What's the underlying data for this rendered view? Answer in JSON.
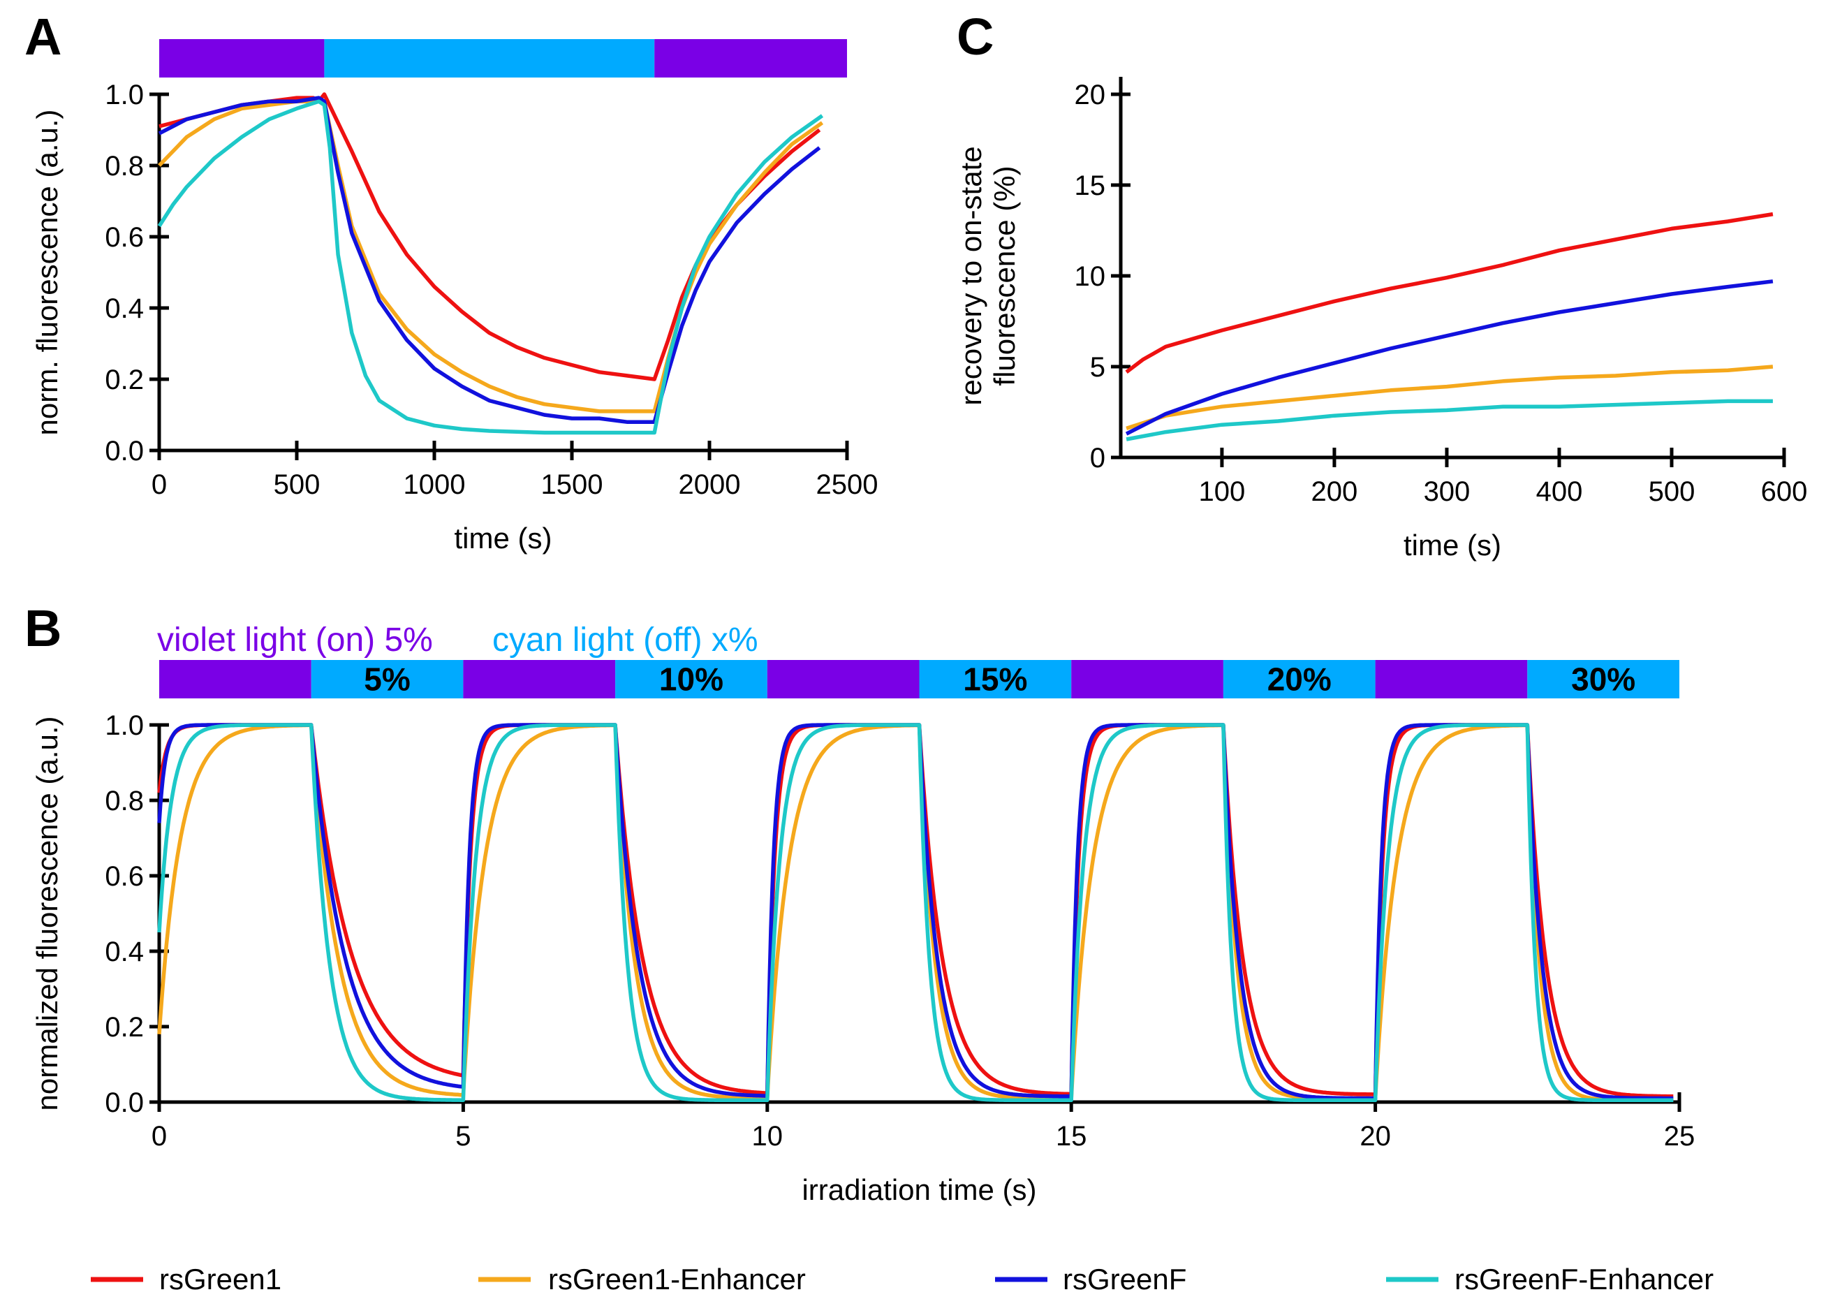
{
  "colors": {
    "rsGreen1": "#ee1111",
    "rsGreen1-Enhancer": "#f5a81c",
    "rsGreenF": "#1111dd",
    "rsGreenF-Enhancer": "#1ec8c8",
    "violet": "#7a00e6",
    "cyan": "#00aaff"
  },
  "legend": [
    {
      "name": "rsGreen1",
      "color": "#ee1111"
    },
    {
      "name": "rsGreen1-Enhancer",
      "color": "#f5a81c"
    },
    {
      "name": "rsGreenF",
      "color": "#1111dd"
    },
    {
      "name": "rsGreenF-Enhancer",
      "color": "#1ec8c8"
    }
  ],
  "panels": {
    "A": {
      "label": "A"
    },
    "B": {
      "label": "B",
      "header_violet": "violet light (on) 5%",
      "header_cyan": "cyan light (off) x%"
    },
    "C": {
      "label": "C"
    }
  },
  "chart_data": [
    {
      "id": "A",
      "type": "line",
      "xlabel": "time (s)",
      "ylabel": "norm. fluorescence (a.u.)",
      "xlim": [
        0,
        2500
      ],
      "ylim": [
        0,
        1.0
      ],
      "xticks": [
        0,
        500,
        1000,
        1500,
        2000,
        2500
      ],
      "yticks": [
        0.0,
        0.2,
        0.4,
        0.6,
        0.8,
        1.0
      ],
      "illumination": [
        {
          "start": 0,
          "end": 600,
          "light": "violet"
        },
        {
          "start": 600,
          "end": 1800,
          "light": "cyan"
        },
        {
          "start": 1800,
          "end": 2500,
          "light": "violet"
        }
      ],
      "series": [
        {
          "name": "rsGreen1",
          "points": [
            [
              0,
              0.91
            ],
            [
              100,
              0.93
            ],
            [
              200,
              0.95
            ],
            [
              300,
              0.97
            ],
            [
              400,
              0.98
            ],
            [
              500,
              0.99
            ],
            [
              560,
              0.99
            ],
            [
              580,
              0.98
            ],
            [
              600,
              1.0
            ],
            [
              700,
              0.84
            ],
            [
              800,
              0.67
            ],
            [
              900,
              0.55
            ],
            [
              1000,
              0.46
            ],
            [
              1100,
              0.39
            ],
            [
              1200,
              0.33
            ],
            [
              1300,
              0.29
            ],
            [
              1400,
              0.26
            ],
            [
              1500,
              0.24
            ],
            [
              1600,
              0.22
            ],
            [
              1700,
              0.21
            ],
            [
              1800,
              0.2
            ],
            [
              1850,
              0.31
            ],
            [
              1900,
              0.43
            ],
            [
              1950,
              0.52
            ],
            [
              2000,
              0.59
            ],
            [
              2100,
              0.69
            ],
            [
              2200,
              0.77
            ],
            [
              2300,
              0.84
            ],
            [
              2400,
              0.9
            ]
          ]
        },
        {
          "name": "rsGreen1-Enhancer",
          "points": [
            [
              0,
              0.8
            ],
            [
              100,
              0.88
            ],
            [
              200,
              0.93
            ],
            [
              300,
              0.96
            ],
            [
              400,
              0.97
            ],
            [
              500,
              0.98
            ],
            [
              600,
              0.98
            ],
            [
              650,
              0.8
            ],
            [
              700,
              0.63
            ],
            [
              800,
              0.44
            ],
            [
              900,
              0.34
            ],
            [
              1000,
              0.27
            ],
            [
              1100,
              0.22
            ],
            [
              1200,
              0.18
            ],
            [
              1300,
              0.15
            ],
            [
              1400,
              0.13
            ],
            [
              1500,
              0.12
            ],
            [
              1600,
              0.11
            ],
            [
              1700,
              0.11
            ],
            [
              1800,
              0.11
            ],
            [
              1850,
              0.26
            ],
            [
              1900,
              0.4
            ],
            [
              1950,
              0.5
            ],
            [
              2000,
              0.58
            ],
            [
              2100,
              0.69
            ],
            [
              2200,
              0.78
            ],
            [
              2300,
              0.86
            ],
            [
              2410,
              0.92
            ]
          ]
        },
        {
          "name": "rsGreenF",
          "points": [
            [
              0,
              0.89
            ],
            [
              100,
              0.93
            ],
            [
              200,
              0.95
            ],
            [
              300,
              0.97
            ],
            [
              400,
              0.98
            ],
            [
              500,
              0.98
            ],
            [
              580,
              0.99
            ],
            [
              600,
              0.98
            ],
            [
              650,
              0.78
            ],
            [
              700,
              0.61
            ],
            [
              800,
              0.42
            ],
            [
              900,
              0.31
            ],
            [
              1000,
              0.23
            ],
            [
              1100,
              0.18
            ],
            [
              1200,
              0.14
            ],
            [
              1300,
              0.12
            ],
            [
              1400,
              0.1
            ],
            [
              1500,
              0.09
            ],
            [
              1600,
              0.09
            ],
            [
              1700,
              0.08
            ],
            [
              1800,
              0.08
            ],
            [
              1850,
              0.22
            ],
            [
              1900,
              0.35
            ],
            [
              1950,
              0.45
            ],
            [
              2000,
              0.53
            ],
            [
              2100,
              0.64
            ],
            [
              2200,
              0.72
            ],
            [
              2300,
              0.79
            ],
            [
              2400,
              0.85
            ]
          ]
        },
        {
          "name": "rsGreenF-Enhancer",
          "points": [
            [
              0,
              0.63
            ],
            [
              50,
              0.69
            ],
            [
              100,
              0.74
            ],
            [
              200,
              0.82
            ],
            [
              300,
              0.88
            ],
            [
              400,
              0.93
            ],
            [
              500,
              0.96
            ],
            [
              580,
              0.98
            ],
            [
              600,
              0.97
            ],
            [
              620,
              0.85
            ],
            [
              650,
              0.55
            ],
            [
              700,
              0.33
            ],
            [
              750,
              0.21
            ],
            [
              800,
              0.14
            ],
            [
              900,
              0.09
            ],
            [
              1000,
              0.07
            ],
            [
              1100,
              0.06
            ],
            [
              1200,
              0.055
            ],
            [
              1400,
              0.05
            ],
            [
              1600,
              0.05
            ],
            [
              1800,
              0.05
            ],
            [
              1850,
              0.25
            ],
            [
              1900,
              0.4
            ],
            [
              1950,
              0.52
            ],
            [
              2000,
              0.6
            ],
            [
              2100,
              0.72
            ],
            [
              2200,
              0.81
            ],
            [
              2300,
              0.88
            ],
            [
              2410,
              0.94
            ]
          ]
        }
      ]
    },
    {
      "id": "C",
      "type": "line",
      "xlabel": "time (s)",
      "ylabel": "recovery to on-state fluorescence (%)",
      "xlim": [
        10,
        600
      ],
      "ylim": [
        0,
        20
      ],
      "xticks": [
        100,
        200,
        300,
        400,
        500,
        600
      ],
      "yticks": [
        0,
        5,
        10,
        15,
        20
      ],
      "series": [
        {
          "name": "rsGreen1",
          "points": [
            [
              15,
              4.7
            ],
            [
              30,
              5.4
            ],
            [
              50,
              6.1
            ],
            [
              100,
              7.0
            ],
            [
              150,
              7.8
            ],
            [
              200,
              8.6
            ],
            [
              250,
              9.3
            ],
            [
              300,
              9.9
            ],
            [
              350,
              10.6
            ],
            [
              400,
              11.4
            ],
            [
              450,
              12.0
            ],
            [
              500,
              12.6
            ],
            [
              550,
              13.0
            ],
            [
              590,
              13.4
            ]
          ]
        },
        {
          "name": "rsGreen1-Enhancer",
          "points": [
            [
              15,
              1.6
            ],
            [
              50,
              2.3
            ],
            [
              100,
              2.8
            ],
            [
              150,
              3.1
            ],
            [
              200,
              3.4
            ],
            [
              250,
              3.7
            ],
            [
              300,
              3.9
            ],
            [
              350,
              4.2
            ],
            [
              400,
              4.4
            ],
            [
              450,
              4.5
            ],
            [
              500,
              4.7
            ],
            [
              550,
              4.8
            ],
            [
              590,
              5.0
            ]
          ]
        },
        {
          "name": "rsGreenF",
          "points": [
            [
              15,
              1.3
            ],
            [
              50,
              2.4
            ],
            [
              100,
              3.5
            ],
            [
              150,
              4.4
            ],
            [
              200,
              5.2
            ],
            [
              250,
              6.0
            ],
            [
              300,
              6.7
            ],
            [
              350,
              7.4
            ],
            [
              400,
              8.0
            ],
            [
              450,
              8.5
            ],
            [
              500,
              9.0
            ],
            [
              550,
              9.4
            ],
            [
              590,
              9.7
            ]
          ]
        },
        {
          "name": "rsGreenF-Enhancer",
          "points": [
            [
              15,
              1.0
            ],
            [
              50,
              1.4
            ],
            [
              100,
              1.8
            ],
            [
              150,
              2.0
            ],
            [
              200,
              2.3
            ],
            [
              250,
              2.5
            ],
            [
              300,
              2.6
            ],
            [
              350,
              2.8
            ],
            [
              400,
              2.8
            ],
            [
              450,
              2.9
            ],
            [
              500,
              3.0
            ],
            [
              550,
              3.1
            ],
            [
              590,
              3.1
            ]
          ]
        }
      ]
    },
    {
      "id": "B",
      "type": "line",
      "xlabel": "irradiation time (s)",
      "ylabel": "normalized fluorescence (a.u.)",
      "xlim": [
        0,
        25
      ],
      "ylim": [
        0,
        1.0
      ],
      "xticks": [
        0,
        5,
        10,
        15,
        20,
        25
      ],
      "yticks": [
        0.0,
        0.2,
        0.4,
        0.6,
        0.8,
        1.0
      ],
      "illumination": [
        {
          "start": 0,
          "end": 2.5,
          "light": "violet",
          "label": ""
        },
        {
          "start": 2.5,
          "end": 5,
          "light": "cyan",
          "label": "5%"
        },
        {
          "start": 5,
          "end": 7.5,
          "light": "violet",
          "label": ""
        },
        {
          "start": 7.5,
          "end": 10,
          "light": "cyan",
          "label": "10%"
        },
        {
          "start": 10,
          "end": 12.5,
          "light": "violet",
          "label": ""
        },
        {
          "start": 12.5,
          "end": 15,
          "light": "cyan",
          "label": "15%"
        },
        {
          "start": 15,
          "end": 17.5,
          "light": "violet",
          "label": ""
        },
        {
          "start": 17.5,
          "end": 20,
          "light": "cyan",
          "label": "20%"
        },
        {
          "start": 20,
          "end": 22.5,
          "light": "violet",
          "label": ""
        },
        {
          "start": 22.5,
          "end": 25,
          "light": "cyan",
          "label": "30%"
        }
      ],
      "cycles": [
        {
          "on_start": 0,
          "off_start": 2.5,
          "off_end": 5
        },
        {
          "on_start": 5,
          "off_start": 7.5,
          "off_end": 10
        },
        {
          "on_start": 10,
          "off_start": 12.5,
          "off_end": 15
        },
        {
          "on_start": 15,
          "off_start": 17.5,
          "off_end": 20
        },
        {
          "on_start": 20,
          "off_start": 22.5,
          "off_end": 25
        }
      ],
      "series": [
        {
          "name": "rsGreen1",
          "start_value": 0.82,
          "on_tau_s": 0.12,
          "off_tau_s": [
            0.65,
            0.45,
            0.38,
            0.32,
            0.3
          ],
          "residual": [
            0.05,
            0.02,
            0.02,
            0.02,
            0.015
          ],
          "end_time": 24.9
        },
        {
          "name": "rsGreen1-Enhancer",
          "start_value": 0.18,
          "on_tau_s": 0.35,
          "off_tau_s": [
            0.45,
            0.32,
            0.26,
            0.22,
            0.2
          ],
          "residual": [
            0.015,
            0.01,
            0.01,
            0.01,
            0.005
          ],
          "end_time": 24.9
        },
        {
          "name": "rsGreenF",
          "start_value": 0.74,
          "on_tau_s": 0.1,
          "off_tau_s": [
            0.55,
            0.38,
            0.3,
            0.26,
            0.24
          ],
          "residual": [
            0.03,
            0.015,
            0.015,
            0.01,
            0.01
          ],
          "end_time": 24.9
        },
        {
          "name": "rsGreenF-Enhancer",
          "start_value": 0.45,
          "on_tau_s": 0.2,
          "off_tau_s": [
            0.3,
            0.2,
            0.17,
            0.14,
            0.13
          ],
          "residual": [
            0.005,
            0.005,
            0.005,
            0.005,
            0.005
          ],
          "end_time": 24.9
        }
      ]
    }
  ]
}
